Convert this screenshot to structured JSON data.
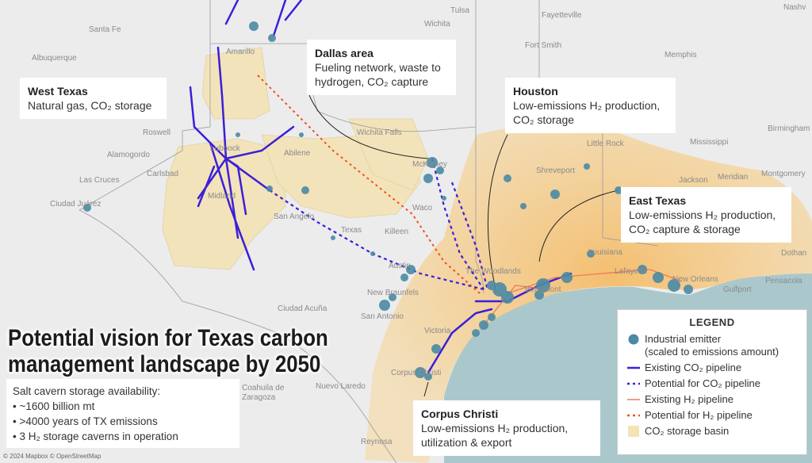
{
  "title": [
    "Potential vision for Texas carbon",
    "management landscape by 2050"
  ],
  "salt_cavern": {
    "heading": "Salt cavern storage availability:",
    "bullets": [
      "• ~1600 billion mt",
      "• >4000 years of TX emissions",
      "• 3 H₂ storage caverns in operation"
    ]
  },
  "callouts": {
    "west_texas": {
      "heading": "West Texas",
      "lines": [
        "Natural gas, CO₂ storage"
      ]
    },
    "dallas": {
      "heading": "Dallas area",
      "lines": [
        "Fueling network, waste to",
        "hydrogen, CO₂ capture"
      ]
    },
    "houston": {
      "heading": "Houston",
      "lines": [
        "Low-emissions H₂ production,",
        "CO₂ storage"
      ]
    },
    "east_texas": {
      "heading": "East Texas",
      "lines": [
        "Low-emissions H₂ production,",
        "CO₂ capture & storage"
      ]
    },
    "corpus_christi": {
      "heading": "Corpus Christi",
      "lines": [
        "Low-emissions H₂ production,",
        "utilization & export"
      ]
    }
  },
  "legend": {
    "title": "LEGEND",
    "items": [
      {
        "label": "Industrial emitter",
        "label2": "(scaled to emissions amount)",
        "color": "#4b8aa5"
      },
      {
        "label": "Existing CO₂ pipeline",
        "color": "#3b1fd9"
      },
      {
        "label": "Potential for CO₂ pipeline",
        "color": "#3b1fd9"
      },
      {
        "label": "Existing H₂ pipeline",
        "color": "#f07a55"
      },
      {
        "label": "Potential for H₂ pipeline",
        "color": "#f0501e"
      },
      {
        "label": "CO₂ storage basin",
        "color": "#f3e3b5"
      }
    ]
  },
  "cities": [
    "Santa Fe",
    "Albuquerque",
    "Amarillo",
    "Lubbock",
    "Roswell",
    "Alamogordo",
    "Carlsbad",
    "Las Cruces",
    "Ciudad Juárez",
    "Midland",
    "San Angelo",
    "Abilene",
    "Wichita Falls",
    "McKinney",
    "Waco",
    "Killeen",
    "Texas",
    "Austin",
    "New Braunfels",
    "San Antonio",
    "Ciudad Acuña",
    "Victoria",
    "Corpus Christi",
    "Nuevo Laredo",
    "Coahuila de",
    "Zaragoza",
    "Reynosa",
    "The Woodlands",
    "Beaumont",
    "Lafayette",
    "New Orleans",
    "Gulfport",
    "Pensacola",
    "Louisiana",
    "Shreveport",
    "Jackson",
    "Meridian",
    "Mississippi",
    "Birmingham",
    "Memphis",
    "Nashv",
    "Little Rock",
    "Fayetteville",
    "Tulsa",
    "Wichita",
    "Fort Smith",
    "Montgomery",
    "Dothan"
  ],
  "credit": "© 2024 Mapbox © OpenStreetMap",
  "colors": {
    "water": "#aac8cc",
    "land": "#ececec",
    "basin": "#f3e3b5",
    "emitter": "#4b8aa5"
  }
}
